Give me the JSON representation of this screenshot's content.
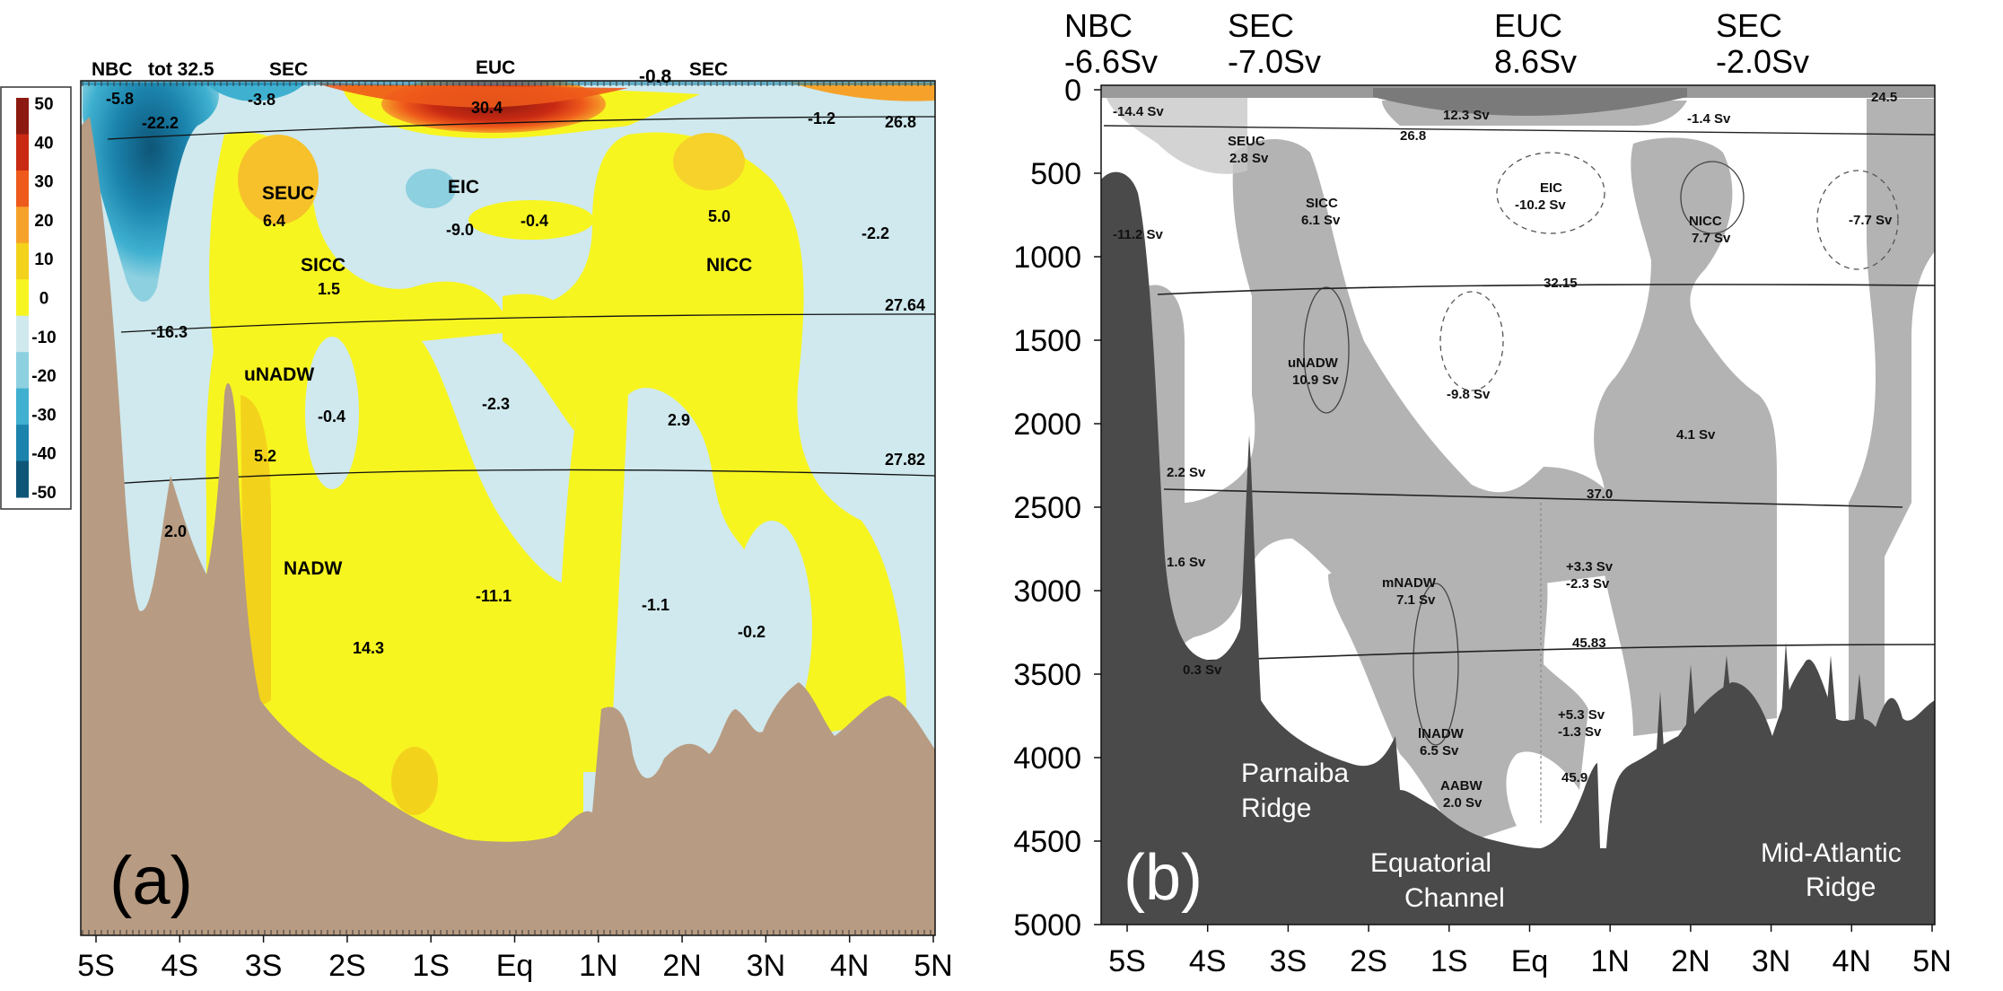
{
  "panel_a": {
    "panel_label": "(a)",
    "top_labels": [
      "NBC",
      "tot 32.5",
      "SEC",
      "EUC",
      "-0.8",
      "SEC"
    ],
    "colorbar": {
      "ticks": [
        "50",
        "40",
        "30",
        "20",
        "10",
        "0",
        "-10",
        "-20",
        "-30",
        "-40",
        "-50"
      ],
      "colors": [
        "#8c1a10",
        "#c92a13",
        "#ee5a1b",
        "#f6a22a",
        "#f3d21c",
        "#f7f520",
        "#cfe9ee",
        "#8dd0e0",
        "#3fb0d0",
        "#1b83ac",
        "#0e5577"
      ]
    },
    "x_ticks": [
      "5S",
      "4S",
      "3S",
      "2S",
      "1S",
      "Eq",
      "1N",
      "2N",
      "3N",
      "4N",
      "5N"
    ],
    "isopycnals": [
      "26.8",
      "27.64",
      "27.82"
    ],
    "labels": {
      "nbc_val": "-5.8",
      "v_222": "-22.2",
      "sec_val": "-3.8",
      "euc_val": "30.4",
      "sec_n_val": "-1.2",
      "seuc": "SEUC",
      "seuc_val": "6.4",
      "eic": "EIC",
      "eic_val": "-9.0",
      "v_04a": "-0.4",
      "nicc_val_top": "5.0",
      "v_22": "-2.2",
      "sicc": "SICC",
      "sicc_val": "1.5",
      "nicc": "NICC",
      "v_163": "-16.3",
      "unadw": "uNADW",
      "v_04b": "-0.4",
      "v_23": "-2.3",
      "v_29": "2.9",
      "v_52": "5.2",
      "v_20": "2.0",
      "nadw": "NADW",
      "v_111": "-11.1",
      "v_11": "-1.1",
      "v_02": "-0.2",
      "v_143": "14.3"
    }
  },
  "panel_b": {
    "panel_label": "(b)",
    "header": [
      {
        "name": "NBC",
        "value": "-6.6Sv"
      },
      {
        "name": "SEC",
        "value": "-7.0Sv"
      },
      {
        "name": "EUC",
        "value": "8.6Sv"
      },
      {
        "name": "SEC",
        "value": "-2.0Sv"
      }
    ],
    "y_ticks": [
      "0",
      "500",
      "1000",
      "1500",
      "2000",
      "2500",
      "3000",
      "3500",
      "4000",
      "4500",
      "5000"
    ],
    "x_ticks": [
      "5S",
      "4S",
      "3S",
      "2S",
      "1S",
      "Eq",
      "1N",
      "2N",
      "3N",
      "4N",
      "5N"
    ],
    "ridges": {
      "parnaiba_1": "Parnaiba",
      "parnaiba_2": "Ridge",
      "channel_1": "Equatorial",
      "channel_2": "Channel",
      "mar_1": "Mid-Atlantic",
      "mar_2": "Ridge"
    },
    "labels": {
      "v144": "-14.4 Sv",
      "v123": "12.3 Sv",
      "v14": "-1.4 Sv",
      "d245": "24.5",
      "seuc": "SEUC",
      "seuc_v": "2.8 Sv",
      "d268": "26.8",
      "sicc": "SICC",
      "sicc_v": "6.1 Sv",
      "eic": "EIC",
      "eic_v": "-10.2 Sv",
      "nicc": "NICC",
      "nicc_v": "7.7 Sv",
      "v77": "-7.7 Sv",
      "v112": "-11.2 Sv",
      "d3215": "32.15",
      "unadw": "uNADW",
      "unadw_v": "10.9 Sv",
      "v98": "-9.8 Sv",
      "v41": "4.1 Sv",
      "v22": "2.2 Sv",
      "d370": "37.0",
      "v16": "1.6 Sv",
      "mnadw": "mNADW",
      "mnadw_v": "7.1 Sv",
      "v33": "+3.3 Sv",
      "v23": "-2.3 Sv",
      "d4583": "45.83",
      "v03": "0.3 Sv",
      "lnadw": "lNADW",
      "lnadw_v": "6.5 Sv",
      "v53": "+5.3 Sv",
      "v13": "-1.3 Sv",
      "aabw": "AABW",
      "aabw_v": "2.0 Sv",
      "d459": "45.9"
    }
  }
}
